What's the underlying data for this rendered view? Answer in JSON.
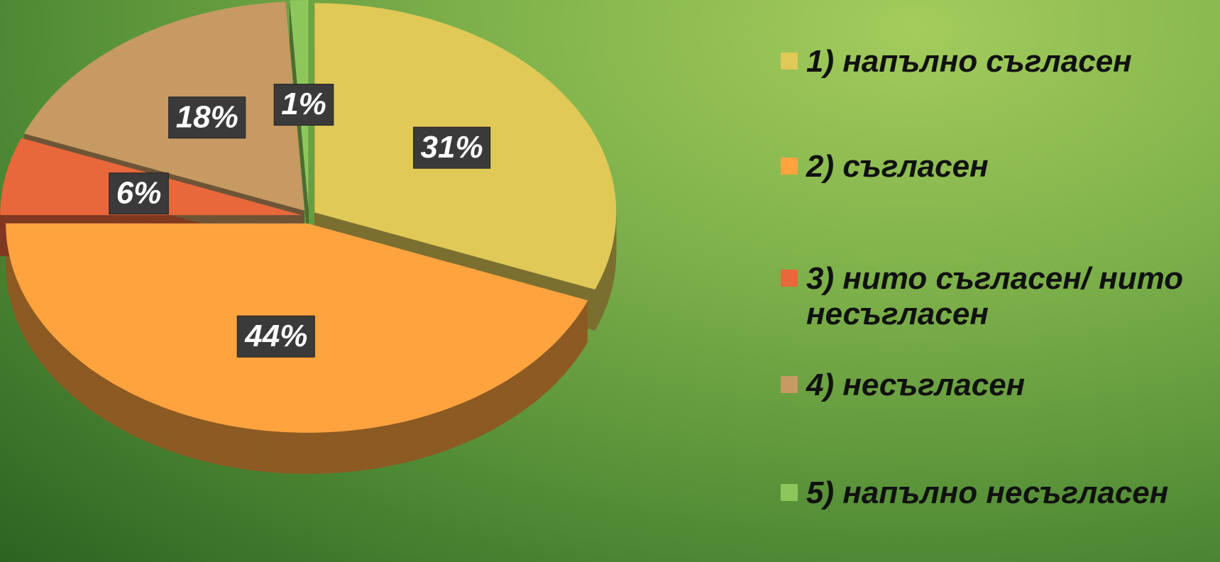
{
  "chart_data": {
    "type": "pie",
    "categories": [
      "1) напълно съгласен",
      "2) съгласен",
      "3) нито съгласен/ нито несъгласен",
      "4) несъгласен",
      "5) напълно несъгласен"
    ],
    "values": [
      31,
      44,
      6,
      18,
      1
    ],
    "value_labels": [
      "31%",
      "44%",
      "6%",
      "18%",
      "1%"
    ],
    "colors": [
      "#e0c957",
      "#ffa33f",
      "#e8673b",
      "#c69a62",
      "#8dc75b"
    ]
  }
}
